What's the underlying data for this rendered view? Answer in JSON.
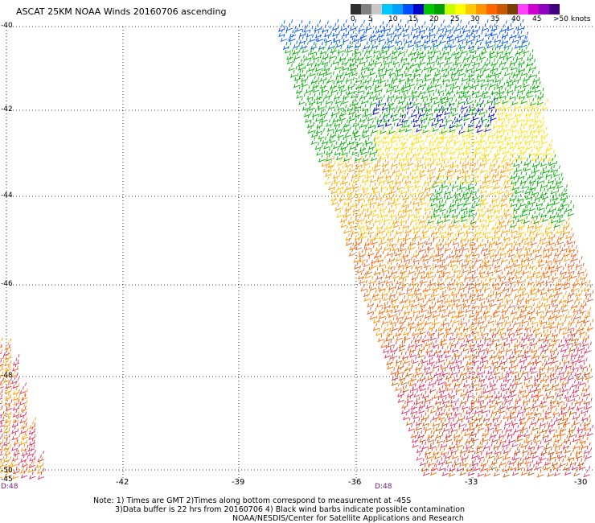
{
  "title": "ASCAT 25KM NOAA Winds 20160706 ascending",
  "legend": {
    "colors": [
      "#303030",
      "#808080",
      "#c8c8c8",
      "#00c8ff",
      "#00a0ff",
      "#0050ff",
      "#0000c8",
      "#00c800",
      "#00a000",
      "#c8ff00",
      "#ffff00",
      "#ffc800",
      "#ff9600",
      "#ff6400",
      "#c85a00",
      "#784000",
      "#ff40ff",
      "#d000d0",
      "#9000c0",
      "#400080"
    ],
    "labels": [
      "0",
      "5",
      "10",
      "15",
      "20",
      "25",
      "30",
      "35",
      "40",
      "45",
      ">50 knots"
    ]
  },
  "map": {
    "lat_labels": [
      "-40",
      "-42",
      "-44",
      "-46",
      "-48",
      "-50"
    ],
    "lon_labels": [
      "-42",
      "-39",
      "-36",
      "-33",
      "-30"
    ],
    "left_edge_lon": "-45",
    "time_labels": [
      "D:48",
      "D:48"
    ]
  },
  "notes": [
    "Note: 1) Times are GMT 2)Times along bottom correspond to measurement at -45S",
    "3)Data buffer is 22 hrs from 20160706 4) Black wind barbs indicate possible contamination",
    "NOAA/NESDIS/Center for Satellite Applications and Research"
  ]
}
